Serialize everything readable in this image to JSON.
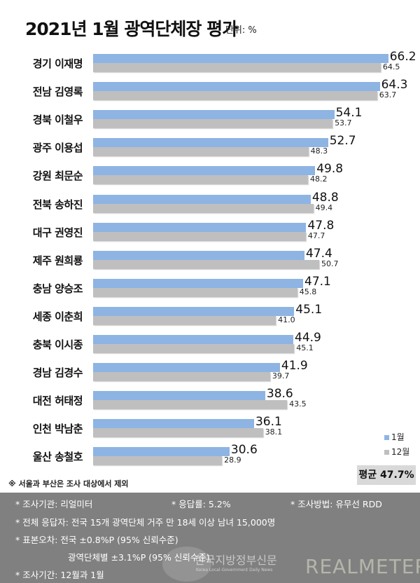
{
  "header": {
    "title": "2021년 1월 광역단체장 평가",
    "unit": "단위: %"
  },
  "legend": {
    "jan": "1월",
    "dec": "12월",
    "jan_color": "#8eb4e3",
    "dec_color": "#bfbfbf"
  },
  "average": "평균 47.7%",
  "note": "※ 서울과 부산은 조사 대상에서 제외",
  "rows": [
    {
      "label": "경기 이재명",
      "jan": "66.2",
      "dec": "64.5"
    },
    {
      "label": "전남 김영록",
      "jan": "64.3",
      "dec": "63.7"
    },
    {
      "label": "경북 이철우",
      "jan": "54.1",
      "dec": "53.7"
    },
    {
      "label": "광주 이용섭",
      "jan": "52.7",
      "dec": "48.3"
    },
    {
      "label": "강원 최문순",
      "jan": "49.8",
      "dec": "48.2"
    },
    {
      "label": "전북 송하진",
      "jan": "48.8",
      "dec": "49.4"
    },
    {
      "label": "대구 권영진",
      "jan": "47.8",
      "dec": "47.7"
    },
    {
      "label": "제주 원희룡",
      "jan": "47.4",
      "dec": "50.7"
    },
    {
      "label": "충남 양승조",
      "jan": "47.1",
      "dec": "45.8"
    },
    {
      "label": "세종 이춘희",
      "jan": "45.1",
      "dec": "41.0"
    },
    {
      "label": "충북 이시종",
      "jan": "44.9",
      "dec": "45.1"
    },
    {
      "label": "경남 김경수",
      "jan": "41.9",
      "dec": "39.7"
    },
    {
      "label": "대전 허태정",
      "jan": "38.6",
      "dec": "43.5"
    },
    {
      "label": "인천 박남춘",
      "jan": "36.1",
      "dec": "38.1"
    },
    {
      "label": "울산 송철호",
      "jan": "30.6",
      "dec": "28.9"
    }
  ],
  "footer": {
    "agency": "* 조사기관: 리얼미터",
    "response_rate": "* 응답률: 5.2%",
    "method": "* 조사방법: 유무선 RDD",
    "respondents": "* 전체 응답자: 전국 15개 광역단체 거주 만 18세 이상 남녀 15,000명",
    "error_national": "* 표본오차: 전국 ±0.8%P (95% 신뢰수준)",
    "error_regional": "광역단체별 ±3.1%P (95% 신뢰수준)",
    "period": "* 조사기간: 12월과 1월",
    "watermark": "한국지방정부신문",
    "watermark_sub": "Korea Local-Government Daily News",
    "brand": "REALMETER"
  },
  "chart_data": {
    "type": "bar",
    "orientation": "horizontal",
    "title": "2021년 1월 광역단체장 평가",
    "unit": "%",
    "categories": [
      "경기 이재명",
      "전남 김영록",
      "경북 이철우",
      "광주 이용섭",
      "강원 최문순",
      "전북 송하진",
      "대구 권영진",
      "제주 원희룡",
      "충남 양승조",
      "세종 이춘희",
      "충북 이시종",
      "경남 김경수",
      "대전 허태정",
      "인천 박남춘",
      "울산 송철호"
    ],
    "series": [
      {
        "name": "1월",
        "color": "#8eb4e3",
        "values": [
          66.2,
          64.3,
          54.1,
          52.7,
          49.8,
          48.8,
          47.8,
          47.4,
          47.1,
          45.1,
          44.9,
          41.9,
          38.6,
          36.1,
          30.6
        ]
      },
      {
        "name": "12월",
        "color": "#bfbfbf",
        "values": [
          64.5,
          63.7,
          53.7,
          48.3,
          48.2,
          49.4,
          47.7,
          50.7,
          45.8,
          41.0,
          45.1,
          39.7,
          43.5,
          38.1,
          28.9
        ]
      }
    ],
    "annotations": [
      "평균 47.7%",
      "※ 서울과 부산은 조사 대상에서 제외"
    ],
    "legend_position": "bottom-right",
    "grid": false
  }
}
